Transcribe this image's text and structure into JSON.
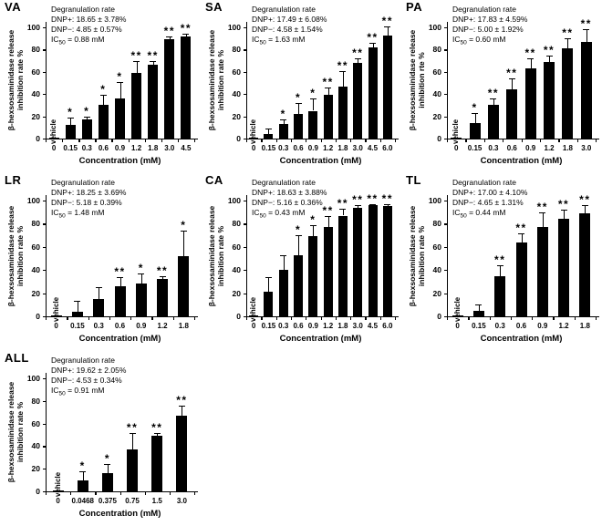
{
  "figure": {
    "background_color": "#ffffff",
    "bar_color": "#000000",
    "axis_color": "#000000",
    "text_color": "#000000",
    "grid": "off",
    "legend": "none"
  },
  "chart_data": [
    {
      "type": "bar",
      "panel_label": "VA",
      "annotation_title": "Degranulation rate",
      "dnp_plus": "DNP+: 18.65 ± 3.78%",
      "dnp_minus": "DNP−: 4.85 ± 0.57%",
      "ic50": {
        "prefix": "IC",
        "sub": "50",
        "rest": " = 0.88 mM"
      },
      "ylabel_lines": [
        "β-hexsosaminidase release",
        "inhibition rate %"
      ],
      "xlabel": "Concentration (mM)",
      "vehicle_label": "vehicle",
      "ylim": [
        0,
        100
      ],
      "yticks": [
        0,
        20,
        40,
        60,
        80,
        100
      ],
      "categories": [
        "0",
        "0.15",
        "0.3",
        "0.6",
        "0.9",
        "1.2",
        "1.8",
        "3.0",
        "4.5"
      ],
      "values": [
        0.8,
        12,
        17,
        30,
        36,
        59,
        66,
        89,
        92
      ],
      "errors": [
        0,
        7,
        3,
        9,
        15,
        11,
        4,
        3,
        2
      ],
      "significance": [
        "",
        "*",
        "*",
        "*",
        "*",
        "**",
        "**",
        "**",
        "**"
      ]
    },
    {
      "type": "bar",
      "panel_label": "SA",
      "annotation_title": "Degranulation rate",
      "dnp_plus": "DNP+: 17.49 ± 6.08%",
      "dnp_minus": "DNP−: 4.58 ± 1.54%",
      "ic50": {
        "prefix": "IC",
        "sub": "50",
        "rest": " = 1.63 mM"
      },
      "ylabel_lines": [
        "β-hexsosaminidase release",
        "inhibition rate %"
      ],
      "xlabel": "Concentration (mM)",
      "vehicle_label": "vehicle",
      "ylim": [
        0,
        100
      ],
      "yticks": [
        0,
        20,
        40,
        60,
        80,
        100
      ],
      "categories": [
        "0",
        "0.15",
        "0.3",
        "0.6",
        "0.9",
        "1.2",
        "1.8",
        "3.0",
        "4.5",
        "6.0"
      ],
      "values": [
        0.8,
        4,
        13,
        22,
        25,
        39,
        47,
        68,
        82,
        93
      ],
      "errors": [
        0,
        5,
        4,
        10,
        11,
        7,
        14,
        4,
        4,
        8
      ],
      "significance": [
        "",
        "",
        "*",
        "*",
        "*",
        "**",
        "**",
        "**",
        "**",
        "**"
      ]
    },
    {
      "type": "bar",
      "panel_label": "PA",
      "annotation_title": "Degranulation rate",
      "dnp_plus": "DNP+: 17.83 ± 4.59%",
      "dnp_minus": "DNP−: 5.00 ± 1.92%",
      "ic50": {
        "prefix": "IC",
        "sub": "50",
        "rest": " = 0.60 mM"
      },
      "ylabel_lines": [
        "β-hexsosaminidase release",
        "inhibition rte %"
      ],
      "xlabel": "Concentration (mM)",
      "vehicle_label": "vehicle",
      "ylim": [
        0,
        100
      ],
      "yticks": [
        0,
        20,
        40,
        60,
        80,
        100
      ],
      "categories": [
        "0",
        "0.15",
        "0.3",
        "0.6",
        "0.9",
        "1.2",
        "1.8",
        "3.0"
      ],
      "values": [
        0.8,
        14,
        30,
        44,
        63,
        69,
        81,
        87
      ],
      "errors": [
        0,
        9,
        6,
        10,
        9,
        6,
        9,
        11
      ],
      "significance": [
        "",
        "*",
        "**",
        "**",
        "**",
        "**",
        "**",
        "**"
      ]
    },
    {
      "type": "bar",
      "panel_label": "LR",
      "annotation_title": "Degranulation rate",
      "dnp_plus": "DNP+: 18.25 ± 3.69%",
      "dnp_minus": "DNP−: 5.18 ± 0.39%",
      "ic50": {
        "prefix": "IC",
        "sub": "50",
        "rest": " = 1.48 mM"
      },
      "ylabel_lines": [
        "β-hexsosaminidase release",
        "inhibition rate %"
      ],
      "xlabel": "Concentration (mM)",
      "vehicle_label": "vehicle",
      "ylim": [
        0,
        100
      ],
      "yticks": [
        0,
        20,
        40,
        60,
        80,
        100
      ],
      "categories": [
        "0",
        "0.15",
        "0.3",
        "0.6",
        "0.9",
        "1.2",
        "1.8"
      ],
      "values": [
        0.8,
        4,
        15,
        26,
        28,
        32,
        52
      ],
      "errors": [
        0,
        9,
        10,
        8,
        9,
        3,
        22
      ],
      "significance": [
        "",
        "",
        "",
        "**",
        "*",
        "**",
        "*"
      ]
    },
    {
      "type": "bar",
      "panel_label": "CA",
      "annotation_title": "Degranulation rate",
      "dnp_plus": "DNP+: 18.63 ± 3.88%",
      "dnp_minus": "DNP−: 5.16 ± 0.36%",
      "ic50": {
        "prefix": "IC",
        "sub": "50",
        "rest": " = 0.43 mM"
      },
      "ylabel_lines": [
        "β-hexsosaminidase release",
        "inhibition rate %"
      ],
      "xlabel": "Concentration (mM)",
      "vehicle_label": "vehicle",
      "ylim": [
        0,
        100
      ],
      "yticks": [
        0,
        20,
        40,
        60,
        80,
        100
      ],
      "categories": [
        "0",
        "0.15",
        "0.3",
        "0.6",
        "0.9",
        "1.2",
        "1.8",
        "3.0",
        "4.5",
        "6.0"
      ],
      "values": [
        0.8,
        21,
        40,
        53,
        69,
        77,
        87,
        94,
        96,
        95
      ],
      "errors": [
        0,
        13,
        13,
        17,
        10,
        10,
        6,
        2,
        1,
        2
      ],
      "significance": [
        "",
        "",
        "",
        "*",
        "*",
        "**",
        "**",
        "**",
        "**",
        "**"
      ]
    },
    {
      "type": "bar",
      "panel_label": "TL",
      "annotation_title": "Degranulation rate",
      "dnp_plus": "DNP+: 17.00 ± 4.10%",
      "dnp_minus": "DNP−: 4.65 ± 1.31%",
      "ic50": {
        "prefix": "IC",
        "sub": "50",
        "rest": " = 0.44 mM"
      },
      "ylabel_lines": [
        "β-hexsosaminidase release",
        "inhibition rate %"
      ],
      "xlabel": "Concentration (mM)",
      "vehicle_label": "vehicle",
      "ylim": [
        0,
        100
      ],
      "yticks": [
        0,
        20,
        40,
        60,
        80,
        100
      ],
      "categories": [
        "0",
        "0.15",
        "0.3",
        "0.6",
        "0.9",
        "1.2",
        "1.8"
      ],
      "values": [
        0.8,
        5,
        35,
        64,
        77,
        84,
        89
      ],
      "errors": [
        0,
        5,
        9,
        8,
        13,
        8,
        7
      ],
      "significance": [
        "",
        "",
        "**",
        "**",
        "**",
        "**",
        "**"
      ]
    },
    {
      "type": "bar",
      "panel_label": "ALL",
      "annotation_title": "Degranulation rate",
      "dnp_plus": "DNP+: 19.62 ± 2.05%",
      "dnp_minus": "DNP−: 4.53 ± 0.34%",
      "ic50": {
        "prefix": "IC",
        "sub": "50",
        "rest": " = 0.91 mM"
      },
      "ylabel_lines": [
        "β-hexsosaminidase release",
        "inhibition rate %"
      ],
      "xlabel": "Concentration (mM)",
      "vehicle_label": "vehicle",
      "ylim": [
        0,
        100
      ],
      "yticks": [
        0,
        20,
        40,
        60,
        80,
        100
      ],
      "categories": [
        "0",
        "0.0468",
        "0.375",
        "0.75",
        "1.5",
        "3.0"
      ],
      "values": [
        0.8,
        10,
        16,
        37,
        49,
        67
      ],
      "errors": [
        0,
        8,
        8,
        15,
        3,
        9
      ],
      "significance": [
        "",
        "*",
        "*",
        "**",
        "**",
        "**"
      ]
    }
  ]
}
